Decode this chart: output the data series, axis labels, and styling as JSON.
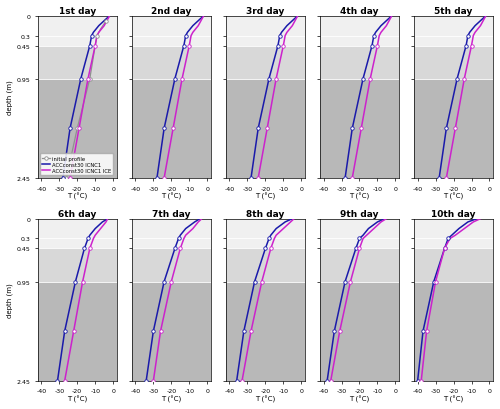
{
  "titles": [
    "1st day",
    "2nd day",
    "3rd day",
    "4th day",
    "5th day",
    "6th day",
    "7th day",
    "8th day",
    "9th day",
    "10th day"
  ],
  "depth_ticks": [
    0,
    0.3,
    0.45,
    0.95,
    2.45
  ],
  "depth_min": 0,
  "depth_max": 2.45,
  "xlim": [
    -42,
    2
  ],
  "xticks": [
    -40,
    -30,
    -20,
    -10,
    0
  ],
  "xlabel": "T (°C)",
  "ylabel": "depth (m)",
  "bg_top": "#f0f0f0",
  "bg_mid": "#d8d8d8",
  "bg_bot": "#b8b8b8",
  "horizon1": 0.3,
  "horizon2": 0.45,
  "horizon3": 0.95,
  "legend_labels": [
    "initial profile",
    "ACCconst30 ICNC1",
    "ACCconst30 ICNC1 ICE"
  ],
  "initial_color": "#909090",
  "blue_color": "#1a1aaa",
  "magenta_color": "#cc22cc",
  "initial_depth": [
    0,
    0.08,
    0.2,
    0.3,
    0.45,
    0.95,
    1.7,
    2.45
  ],
  "initial_temp": [
    -2,
    -4,
    -7,
    -9,
    -10,
    -13,
    -20,
    -26
  ],
  "blue_profiles": [
    {
      "depth": [
        0,
        0.05,
        0.15,
        0.25,
        0.3,
        0.45,
        0.95,
        1.7,
        2.45
      ],
      "temp": [
        -2,
        -4,
        -8,
        -11,
        -12,
        -13,
        -18,
        -24,
        -28
      ]
    },
    {
      "depth": [
        0,
        0.05,
        0.15,
        0.25,
        0.3,
        0.45,
        0.95,
        1.7,
        2.45
      ],
      "temp": [
        -2,
        -4,
        -8,
        -11,
        -12,
        -13,
        -18,
        -24,
        -28
      ]
    },
    {
      "depth": [
        0,
        0.05,
        0.15,
        0.25,
        0.3,
        0.45,
        0.95,
        1.7,
        2.45
      ],
      "temp": [
        -2,
        -4,
        -8,
        -11,
        -12,
        -13,
        -18,
        -24,
        -28
      ]
    },
    {
      "depth": [
        0,
        0.05,
        0.15,
        0.25,
        0.3,
        0.45,
        0.95,
        1.7,
        2.45
      ],
      "temp": [
        -2,
        -4,
        -8,
        -11,
        -12,
        -13,
        -18,
        -24,
        -28
      ]
    },
    {
      "depth": [
        0,
        0.05,
        0.15,
        0.25,
        0.3,
        0.45,
        0.95,
        1.7,
        2.45
      ],
      "temp": [
        -2,
        -4,
        -8,
        -11,
        -12,
        -13,
        -18,
        -24,
        -28
      ]
    },
    {
      "depth": [
        0,
        0.05,
        0.15,
        0.25,
        0.3,
        0.45,
        0.95,
        1.7,
        2.45
      ],
      "temp": [
        -3,
        -6,
        -10,
        -13,
        -14,
        -16,
        -21,
        -27,
        -31
      ]
    },
    {
      "depth": [
        0,
        0.05,
        0.15,
        0.25,
        0.3,
        0.45,
        0.95,
        1.7,
        2.45
      ],
      "temp": [
        -4,
        -7,
        -12,
        -15,
        -16,
        -18,
        -24,
        -30,
        -34
      ]
    },
    {
      "depth": [
        0,
        0.05,
        0.15,
        0.25,
        0.3,
        0.45,
        0.95,
        1.7,
        2.45
      ],
      "temp": [
        -5,
        -9,
        -14,
        -17,
        -18,
        -20,
        -26,
        -32,
        -36
      ]
    },
    {
      "depth": [
        0,
        0.05,
        0.15,
        0.25,
        0.3,
        0.45,
        0.95,
        1.7,
        2.45
      ],
      "temp": [
        -6,
        -10,
        -15,
        -18,
        -20,
        -22,
        -28,
        -34,
        -38
      ]
    },
    {
      "depth": [
        0,
        0.05,
        0.15,
        0.25,
        0.3,
        0.45,
        0.95,
        1.7,
        2.45
      ],
      "temp": [
        -7,
        -12,
        -17,
        -21,
        -23,
        -25,
        -31,
        -37,
        -40
      ]
    }
  ],
  "magenta_profiles": [
    {
      "depth": [
        0,
        0.05,
        0.15,
        0.25,
        0.3,
        0.45,
        0.95,
        1.7,
        2.45
      ],
      "temp": [
        -2,
        -3,
        -5,
        -8,
        -9,
        -10,
        -14,
        -19,
        -24
      ]
    },
    {
      "depth": [
        0,
        0.05,
        0.15,
        0.25,
        0.3,
        0.45,
        0.95,
        1.7,
        2.45
      ],
      "temp": [
        -2,
        -3,
        -5,
        -8,
        -9,
        -10,
        -14,
        -19,
        -24
      ]
    },
    {
      "depth": [
        0,
        0.05,
        0.15,
        0.25,
        0.3,
        0.45,
        0.95,
        1.7,
        2.45
      ],
      "temp": [
        -2,
        -3,
        -5,
        -8,
        -9,
        -10,
        -14,
        -19,
        -24
      ]
    },
    {
      "depth": [
        0,
        0.05,
        0.15,
        0.25,
        0.3,
        0.45,
        0.95,
        1.7,
        2.45
      ],
      "temp": [
        -2,
        -3,
        -5,
        -8,
        -9,
        -10,
        -14,
        -19,
        -24
      ]
    },
    {
      "depth": [
        0,
        0.05,
        0.15,
        0.25,
        0.3,
        0.45,
        0.95,
        1.7,
        2.45
      ],
      "temp": [
        -2,
        -3,
        -5,
        -8,
        -9,
        -10,
        -14,
        -19,
        -24
      ]
    },
    {
      "depth": [
        0,
        0.05,
        0.15,
        0.25,
        0.3,
        0.45,
        0.95,
        1.7,
        2.45
      ],
      "temp": [
        -3,
        -4,
        -7,
        -10,
        -11,
        -13,
        -17,
        -22,
        -27
      ]
    },
    {
      "depth": [
        0,
        0.05,
        0.15,
        0.25,
        0.3,
        0.45,
        0.95,
        1.7,
        2.45
      ],
      "temp": [
        -3,
        -5,
        -8,
        -12,
        -13,
        -15,
        -20,
        -26,
        -30
      ]
    },
    {
      "depth": [
        0,
        0.05,
        0.15,
        0.25,
        0.3,
        0.45,
        0.95,
        1.7,
        2.45
      ],
      "temp": [
        -4,
        -6,
        -10,
        -14,
        -15,
        -17,
        -22,
        -28,
        -33
      ]
    },
    {
      "depth": [
        0,
        0.05,
        0.15,
        0.25,
        0.3,
        0.45,
        0.95,
        1.7,
        2.45
      ],
      "temp": [
        -5,
        -8,
        -12,
        -16,
        -18,
        -20,
        -25,
        -31,
        -36
      ]
    },
    {
      "depth": [
        0,
        0.05,
        0.15,
        0.25,
        0.3,
        0.45,
        0.95,
        1.7,
        2.45
      ],
      "temp": [
        -5,
        -9,
        -14,
        -19,
        -22,
        -25,
        -30,
        -35,
        -38
      ]
    }
  ],
  "marker_depths_blue": [
    0.3,
    0.45,
    0.95,
    1.7,
    2.45
  ],
  "marker_depths_magenta": [
    0.45,
    0.95,
    1.7,
    2.45
  ],
  "marker_depths_initial": [
    0.08,
    0.3,
    0.95,
    1.7,
    2.45
  ]
}
